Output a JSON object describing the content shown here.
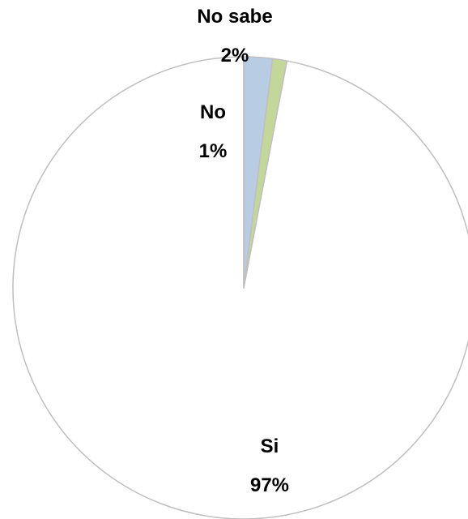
{
  "chart_data": {
    "type": "pie",
    "start_angle_deg": 0,
    "direction": "counterclockwise-from-top",
    "slices": [
      {
        "label": "Si",
        "value": 97,
        "value_label": "97%",
        "color": "#FFFFFF"
      },
      {
        "label": "No",
        "value": 1,
        "value_label": "1%",
        "color": "#C4D79B"
      },
      {
        "label": "No sabe",
        "value": 2,
        "value_label": "2%",
        "color": "#B8CCE4"
      }
    ],
    "slice_border_color": "#BFBFBF",
    "show_legend": false
  }
}
